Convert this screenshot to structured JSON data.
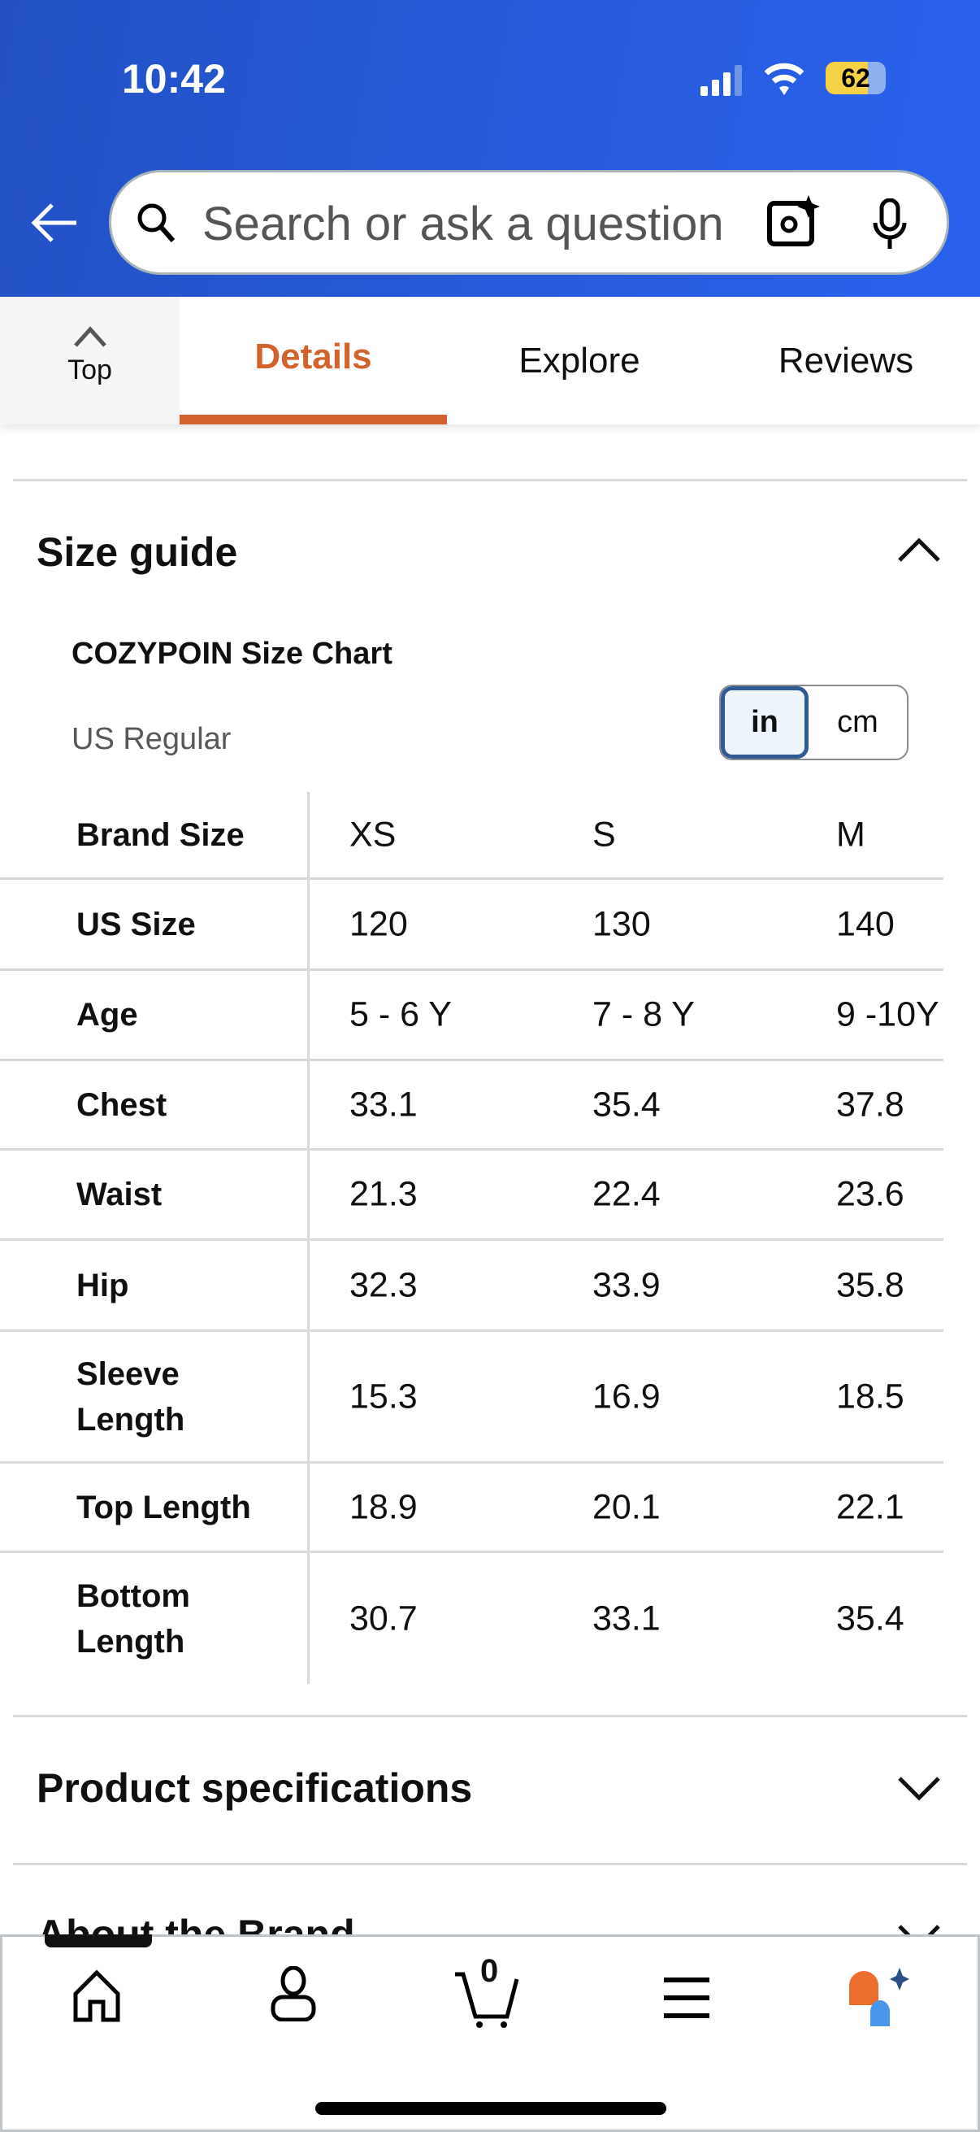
{
  "status": {
    "time": "10:42",
    "battery": "62"
  },
  "search": {
    "placeholder": "Search or ask a question"
  },
  "tabs": {
    "top": "Top",
    "items": [
      "Details",
      "Explore",
      "Reviews"
    ],
    "active": "Details"
  },
  "size_guide": {
    "title": "Size guide",
    "chart_title": "COZYPOIN Size Chart",
    "region": "US Regular",
    "units": [
      "in",
      "cm"
    ],
    "active_unit": "in",
    "rows": [
      {
        "label": "Brand Size",
        "values": [
          "XS",
          "S",
          "M"
        ]
      },
      {
        "label": "US Size",
        "values": [
          "120",
          "130",
          "140"
        ]
      },
      {
        "label": "Age",
        "values": [
          "5 - 6 Y",
          "7 - 8 Y",
          "9 -10Y"
        ]
      },
      {
        "label": "Chest",
        "values": [
          "33.1",
          "35.4",
          "37.8"
        ]
      },
      {
        "label": "Waist",
        "values": [
          "21.3",
          "22.4",
          "23.6"
        ]
      },
      {
        "label": "Hip",
        "values": [
          "32.3",
          "33.9",
          "35.8"
        ]
      },
      {
        "label": "Sleeve Length",
        "values": [
          "15.3",
          "16.9",
          "18.5"
        ]
      },
      {
        "label": "Top Length",
        "values": [
          "18.9",
          "20.1",
          "22.1"
        ]
      },
      {
        "label": "Bottom Length",
        "values": [
          "30.7",
          "33.1",
          "35.4"
        ]
      }
    ]
  },
  "sections": {
    "product_specs": "Product specifications",
    "about_brand": "About the Brand"
  },
  "bottom_nav": {
    "cart_count": "0"
  },
  "colors": {
    "header": "#2a5bdc",
    "accent": "#d4622c",
    "toggle_border": "#2f5a93"
  }
}
